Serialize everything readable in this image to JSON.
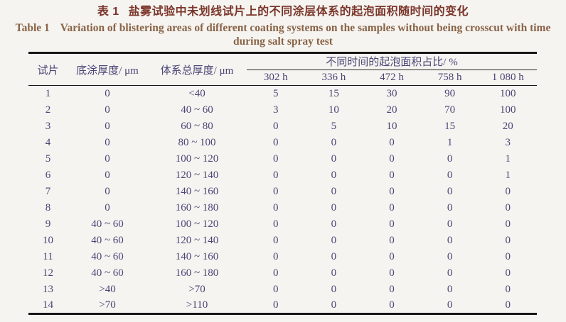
{
  "title": {
    "zh_label": "表 1",
    "zh_text": "盐雾试验中未划线试片上的不同涂层体系的起泡面积随时间的变化",
    "en_label": "Table 1",
    "en_line1": "Variation of blistering areas of different coating systems on the samples without being crosscut with time",
    "en_line2": "during salt spray test"
  },
  "table": {
    "headers": {
      "sample": "试片",
      "primer": "底涂厚度/ μm",
      "total": "体系总厚度/ μm",
      "blister_group": "不同时间的起泡面积占比/ %",
      "times": [
        "302 h",
        "336 h",
        "472 h",
        "758 h",
        "1 080 h"
      ]
    },
    "rows": [
      [
        "1",
        "0",
        "<40",
        "5",
        "15",
        "30",
        "90",
        "100"
      ],
      [
        "2",
        "0",
        "40 ~ 60",
        "3",
        "10",
        "20",
        "70",
        "100"
      ],
      [
        "3",
        "0",
        "60 ~ 80",
        "0",
        "5",
        "10",
        "15",
        "20"
      ],
      [
        "4",
        "0",
        "80 ~ 100",
        "0",
        "0",
        "0",
        "1",
        "3"
      ],
      [
        "5",
        "0",
        "100 ~ 120",
        "0",
        "0",
        "0",
        "0",
        "1"
      ],
      [
        "6",
        "0",
        "120 ~ 140",
        "0",
        "0",
        "0",
        "0",
        "1"
      ],
      [
        "7",
        "0",
        "140 ~ 160",
        "0",
        "0",
        "0",
        "0",
        "0"
      ],
      [
        "8",
        "0",
        "160 ~ 180",
        "0",
        "0",
        "0",
        "0",
        "0"
      ],
      [
        "9",
        "40 ~ 60",
        "100 ~ 120",
        "0",
        "0",
        "0",
        "0",
        "0"
      ],
      [
        "10",
        "40 ~ 60",
        "120 ~ 140",
        "0",
        "0",
        "0",
        "0",
        "0"
      ],
      [
        "11",
        "40 ~ 60",
        "140 ~ 160",
        "0",
        "0",
        "0",
        "0",
        "0"
      ],
      [
        "12",
        "40 ~ 60",
        "160 ~ 180",
        "0",
        "0",
        "0",
        "0",
        "0"
      ],
      [
        "13",
        ">40",
        ">70",
        "0",
        "0",
        "0",
        "0",
        "0"
      ],
      [
        "14",
        ">70",
        ">110",
        "0",
        "0",
        "0",
        "0",
        "0"
      ]
    ]
  },
  "colors": {
    "bg": "#f5f4f0",
    "title_zh": "#7b352a",
    "title_en": "#8a6347",
    "table_text": "#4b4577",
    "rule": "#161616"
  }
}
